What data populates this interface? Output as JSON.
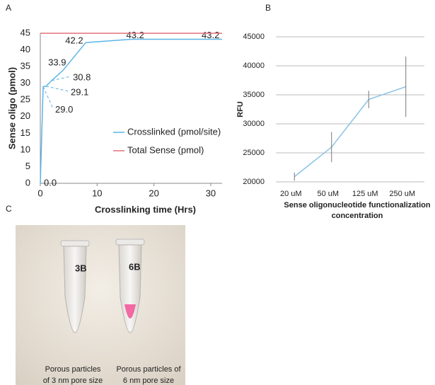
{
  "chart_data": [
    {
      "type": "line",
      "panel": "A",
      "xlabel": "Crosslinking time (Hrs)",
      "ylabel": "Sense oligo (pmol)",
      "xlim": [
        0,
        32
      ],
      "xticks": [
        0,
        10,
        20,
        30
      ],
      "ylim": [
        0,
        45
      ],
      "yticks": [
        0,
        5,
        10,
        15,
        20,
        25,
        30,
        35,
        40,
        45
      ],
      "grid": false,
      "legend": "right",
      "series": [
        {
          "name": "Crosslinked (pmol/site)",
          "color": "#5bb4e5",
          "x": [
            0,
            0.5,
            1,
            2,
            4,
            8,
            16,
            32
          ],
          "values": [
            0,
            29.0,
            29.1,
            30.8,
            33.9,
            42.2,
            43.2,
            43.2
          ],
          "value_labels": [
            "0.0",
            "29.0",
            "29.1",
            "30.8",
            "33.9",
            "42.2",
            "43.2",
            "43.2"
          ]
        },
        {
          "name": "Total Sense (pmol)",
          "color": "#e0707a",
          "x": [
            0,
            32
          ],
          "values": [
            45,
            45
          ]
        }
      ]
    },
    {
      "type": "line",
      "panel": "B",
      "ylabel": "RFU",
      "xlabel": [
        "Sense oligonucleotide functionalization",
        "concentration"
      ],
      "categories": [
        "20 uM",
        "50 uM",
        "125 uM",
        "250 uM"
      ],
      "ylim": [
        20000,
        45000
      ],
      "yticks": [
        20000,
        25000,
        30000,
        35000,
        40000,
        45000
      ],
      "grid": true,
      "series": [
        {
          "color": "#8cc3e6",
          "values": [
            20900,
            26000,
            34200,
            36400
          ],
          "errors": [
            700,
            2600,
            1500,
            5200
          ]
        }
      ]
    }
  ],
  "photo": {
    "panel": "C",
    "captions": [
      [
        "Porous particles",
        "of 3 nm pore size"
      ],
      [
        "Porous particles of",
        "6 nm pore size"
      ]
    ]
  }
}
